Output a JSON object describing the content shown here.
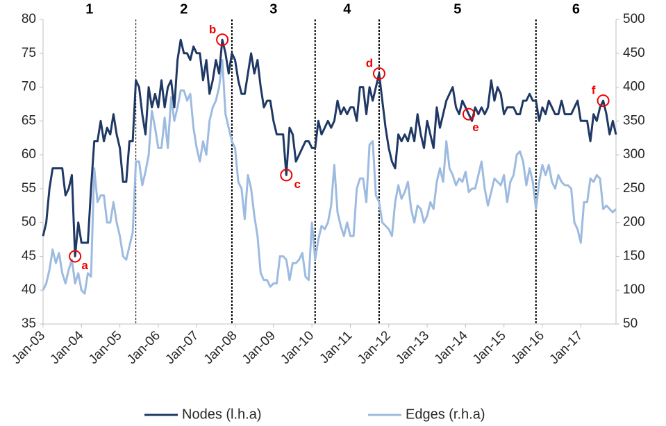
{
  "chart_data": {
    "type": "line",
    "categories": [
      "Jan-03",
      null,
      null,
      null,
      null,
      null,
      null,
      null,
      null,
      null,
      null,
      null,
      "Jan-04",
      null,
      null,
      null,
      null,
      null,
      null,
      null,
      null,
      null,
      null,
      null,
      "Jan-05",
      null,
      null,
      null,
      null,
      null,
      null,
      null,
      null,
      null,
      null,
      null,
      "Jan-06",
      null,
      null,
      null,
      null,
      null,
      null,
      null,
      null,
      null,
      null,
      null,
      "Jan-07",
      null,
      null,
      null,
      null,
      null,
      null,
      null,
      null,
      null,
      null,
      null,
      "Jan-08",
      null,
      null,
      null,
      null,
      null,
      null,
      null,
      null,
      null,
      null,
      null,
      "Jan-09",
      null,
      null,
      null,
      null,
      null,
      null,
      null,
      null,
      null,
      null,
      null,
      "Jan-10",
      null,
      null,
      null,
      null,
      null,
      null,
      null,
      null,
      null,
      null,
      null,
      "Jan-11",
      null,
      null,
      null,
      null,
      null,
      null,
      null,
      null,
      null,
      null,
      null,
      "Jan-12",
      null,
      null,
      null,
      null,
      null,
      null,
      null,
      null,
      null,
      null,
      null,
      "Jan-13",
      null,
      null,
      null,
      null,
      null,
      null,
      null,
      null,
      null,
      null,
      null,
      "Jan-14",
      null,
      null,
      null,
      null,
      null,
      null,
      null,
      null,
      null,
      null,
      null,
      "Jan-15",
      null,
      null,
      null,
      null,
      null,
      null,
      null,
      null,
      null,
      null,
      null,
      "Jan-16",
      null,
      null,
      null,
      null,
      null,
      null,
      null,
      null,
      null,
      null,
      null,
      "Jan-17",
      null,
      null,
      null,
      null,
      null,
      null,
      null,
      null,
      null,
      null,
      null
    ],
    "series": [
      {
        "name": "Nodes (l.h.a)",
        "color": "#1f3864",
        "axis": "y",
        "values": [
          48,
          50,
          55,
          58,
          58,
          58,
          58,
          54,
          55,
          57,
          45,
          50,
          47,
          47,
          47,
          55,
          62,
          62,
          65,
          62,
          64,
          63,
          66,
          63,
          61,
          56,
          56,
          62,
          62,
          71,
          70,
          66,
          63,
          70,
          67,
          69,
          67,
          71,
          67,
          70,
          71,
          67,
          74,
          77,
          75,
          75,
          74,
          76,
          75,
          75,
          71,
          74,
          69,
          71,
          74,
          72,
          77,
          75,
          72,
          75,
          74,
          71,
          69,
          69,
          72,
          75,
          72,
          74,
          70,
          67,
          68,
          68,
          65,
          63,
          63,
          63,
          57,
          64,
          63,
          59,
          60,
          61,
          62,
          62,
          61,
          61,
          65,
          63,
          64,
          65,
          64,
          65,
          68,
          66,
          67,
          66,
          67,
          67,
          65,
          70,
          70,
          66,
          70,
          68,
          70,
          72,
          68,
          64,
          61,
          59,
          58,
          63,
          62,
          63,
          62,
          64,
          62,
          66,
          63,
          61,
          65,
          63,
          61,
          67,
          64,
          66,
          68,
          69,
          70,
          67,
          66,
          68,
          67,
          66,
          65,
          67,
          66,
          67,
          66,
          67,
          71,
          68,
          70,
          69,
          66,
          67,
          67,
          67,
          66,
          66,
          68,
          68,
          69,
          68,
          68,
          65,
          67,
          66,
          68,
          67,
          66,
          66,
          68,
          66,
          66,
          66,
          67,
          68,
          65,
          65,
          65,
          62,
          66,
          65,
          67,
          68,
          66,
          63,
          65,
          63
        ]
      },
      {
        "name": "Edges (r.h.a)",
        "color": "#9dbbe0",
        "axis": "y2",
        "values": [
          100,
          110,
          130,
          160,
          140,
          155,
          125,
          110,
          130,
          145,
          110,
          125,
          100,
          95,
          125,
          120,
          280,
          230,
          240,
          240,
          200,
          200,
          230,
          200,
          180,
          150,
          145,
          165,
          185,
          290,
          290,
          255,
          275,
          300,
          365,
          340,
          310,
          310,
          355,
          310,
          385,
          350,
          370,
          395,
          395,
          380,
          390,
          340,
          310,
          290,
          320,
          300,
          350,
          370,
          380,
          400,
          440,
          360,
          340,
          320,
          310,
          260,
          250,
          205,
          270,
          250,
          210,
          180,
          125,
          115,
          115,
          105,
          110,
          110,
          150,
          150,
          145,
          115,
          140,
          140,
          145,
          155,
          120,
          115,
          200,
          145,
          175,
          195,
          190,
          200,
          225,
          285,
          215,
          195,
          180,
          200,
          180,
          180,
          250,
          265,
          265,
          230,
          315,
          320,
          240,
          230,
          200,
          195,
          190,
          180,
          230,
          255,
          235,
          245,
          260,
          220,
          200,
          225,
          220,
          200,
          210,
          230,
          220,
          260,
          280,
          260,
          320,
          280,
          270,
          255,
          265,
          260,
          275,
          245,
          250,
          250,
          270,
          290,
          250,
          225,
          245,
          265,
          260,
          255,
          270,
          230,
          260,
          270,
          300,
          305,
          290,
          255,
          280,
          260,
          220,
          260,
          285,
          270,
          285,
          260,
          250,
          270,
          260,
          255,
          255,
          250,
          200,
          190,
          170,
          230,
          230,
          265,
          260,
          270,
          265,
          220,
          225,
          220,
          215,
          220
        ]
      }
    ],
    "ylim": [
      35,
      80
    ],
    "yticks": [
      35,
      40,
      45,
      50,
      55,
      60,
      65,
      70,
      75,
      80
    ],
    "y2lim": [
      50,
      500
    ],
    "y2ticks": [
      50,
      100,
      150,
      200,
      250,
      300,
      350,
      400,
      450,
      500
    ],
    "dividers": [
      29,
      59,
      85,
      105,
      154
    ],
    "region_labels": [
      "1",
      "2",
      "3",
      "4",
      "5",
      "6"
    ],
    "annotations": [
      {
        "text": "a",
        "index": 10
      },
      {
        "text": "b",
        "index": 56
      },
      {
        "text": "c",
        "index": 76
      },
      {
        "text": "d",
        "index": 105
      },
      {
        "text": "e",
        "index": 133
      },
      {
        "text": "f",
        "index": 175
      }
    ],
    "legend": "bottom"
  }
}
